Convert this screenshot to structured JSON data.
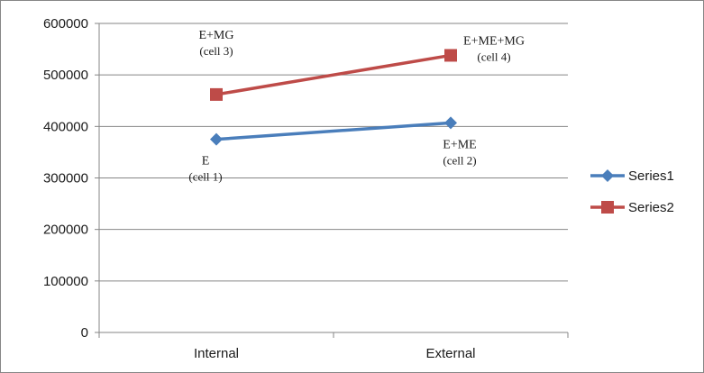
{
  "chart_data": {
    "type": "line",
    "categories": [
      "Internal",
      "External"
    ],
    "series": [
      {
        "name": "Series1",
        "values": [
          375000,
          407000
        ],
        "color": "#4a7ebb",
        "marker": "diamond",
        "point_labels": [
          [
            "E",
            "(cell 1)"
          ],
          [
            "E+ME",
            "(cell 2)"
          ]
        ]
      },
      {
        "name": "Series2",
        "values": [
          462000,
          538000
        ],
        "color": "#be4b48",
        "marker": "square",
        "point_labels": [
          [
            "E+MG",
            "(cell 3)"
          ],
          [
            "E+ME+MG",
            "(cell 4)"
          ]
        ]
      }
    ],
    "title": "",
    "xlabel": "",
    "ylabel": "",
    "ylim": [
      0,
      600000
    ],
    "yticks": [
      0,
      100000,
      200000,
      300000,
      400000,
      500000,
      600000
    ],
    "ytick_labels": [
      "0",
      "100000",
      "200000",
      "300000",
      "400000",
      "500000",
      "600000"
    ],
    "grid": "horizontal",
    "legend": "right"
  }
}
